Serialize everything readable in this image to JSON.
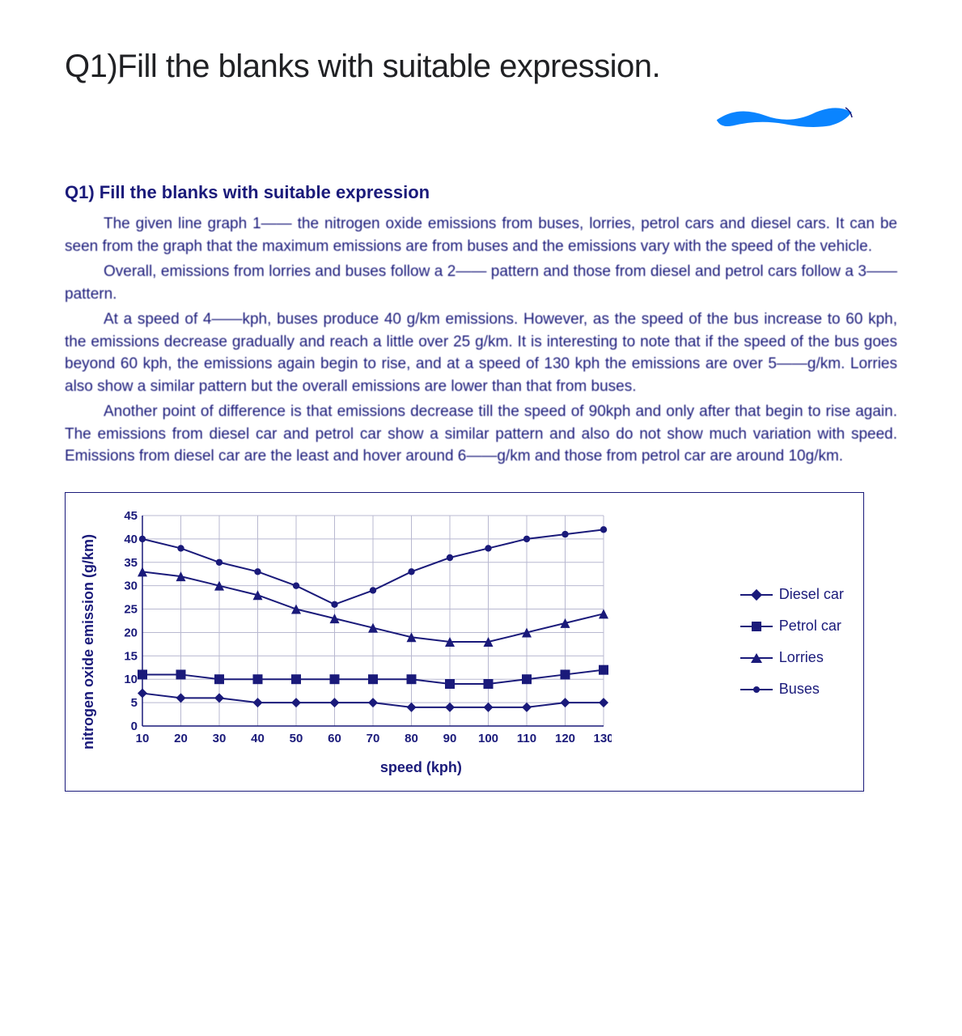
{
  "main_title": "Q1)Fill the blanks with suitable expression.",
  "sub_title": "Q1) Fill the blanks with suitable expression",
  "paragraphs": {
    "p1": "The given line graph 1—— the nitrogen oxide emissions from buses, lorries, petrol cars and diesel cars. It can be seen from the graph that the maximum emissions are from buses and the emissions vary with the speed of the vehicle.",
    "p2": "Overall, emissions from lorries and buses follow a 2—— pattern and those from diesel and petrol cars follow a 3—— pattern.",
    "p3": "At a speed of 4——kph, buses produce 40 g/km emissions. However, as the speed of the bus increase to 60 kph, the emissions decrease gradually and reach a little over 25 g/km. It is interesting to note that if the speed of the bus goes beyond 60 kph, the emissions again begin to rise, and at a speed of 130 kph the emissions are over 5——g/km. Lorries also show a similar pattern but the overall emissions are lower than that from buses.",
    "p4": "Another point of difference is that emissions decrease till the speed of 90kph and only after that begin to rise again. The emissions from diesel car and petrol car show a similar pattern and also do not show much variation with speed. Emissions from diesel car are the least and hover around 6——g/km and those from petrol car are around 10g/km."
  },
  "chart": {
    "type": "line",
    "xlabel": "speed (kph)",
    "ylabel": "nitrogen oxide emission (g/km)",
    "x_ticks": [
      10,
      20,
      30,
      40,
      50,
      60,
      70,
      80,
      90,
      100,
      110,
      120,
      130
    ],
    "y_ticks": [
      0,
      5,
      10,
      15,
      20,
      25,
      30,
      35,
      40,
      45
    ],
    "xlim": [
      10,
      130
    ],
    "ylim": [
      0,
      45
    ],
    "line_color": "#1a1a7a",
    "grid_color": "#b8b8d0",
    "background_color": "#ffffff",
    "line_width": 2,
    "marker_size": 6,
    "series": [
      {
        "name": "Diesel car",
        "marker": "diamond",
        "values": [
          7,
          6,
          6,
          5,
          5,
          5,
          5,
          4,
          4,
          4,
          4,
          5,
          5
        ]
      },
      {
        "name": "Petrol car",
        "marker": "square",
        "values": [
          11,
          11,
          10,
          10,
          10,
          10,
          10,
          10,
          9,
          9,
          10,
          11,
          12
        ]
      },
      {
        "name": "Lorries",
        "marker": "triangle",
        "values": [
          33,
          32,
          30,
          28,
          25,
          23,
          21,
          19,
          18,
          18,
          20,
          22,
          24
        ]
      },
      {
        "name": "Buses",
        "marker": "dot",
        "values": [
          40,
          38,
          35,
          33,
          30,
          26,
          29,
          33,
          36,
          38,
          40,
          41,
          42
        ]
      }
    ],
    "legend": {
      "diesel": "Diesel car",
      "petrol": "Petrol car",
      "lorries": "Lorries",
      "buses": "Buses"
    }
  },
  "scribble_color": "#0a84ff"
}
